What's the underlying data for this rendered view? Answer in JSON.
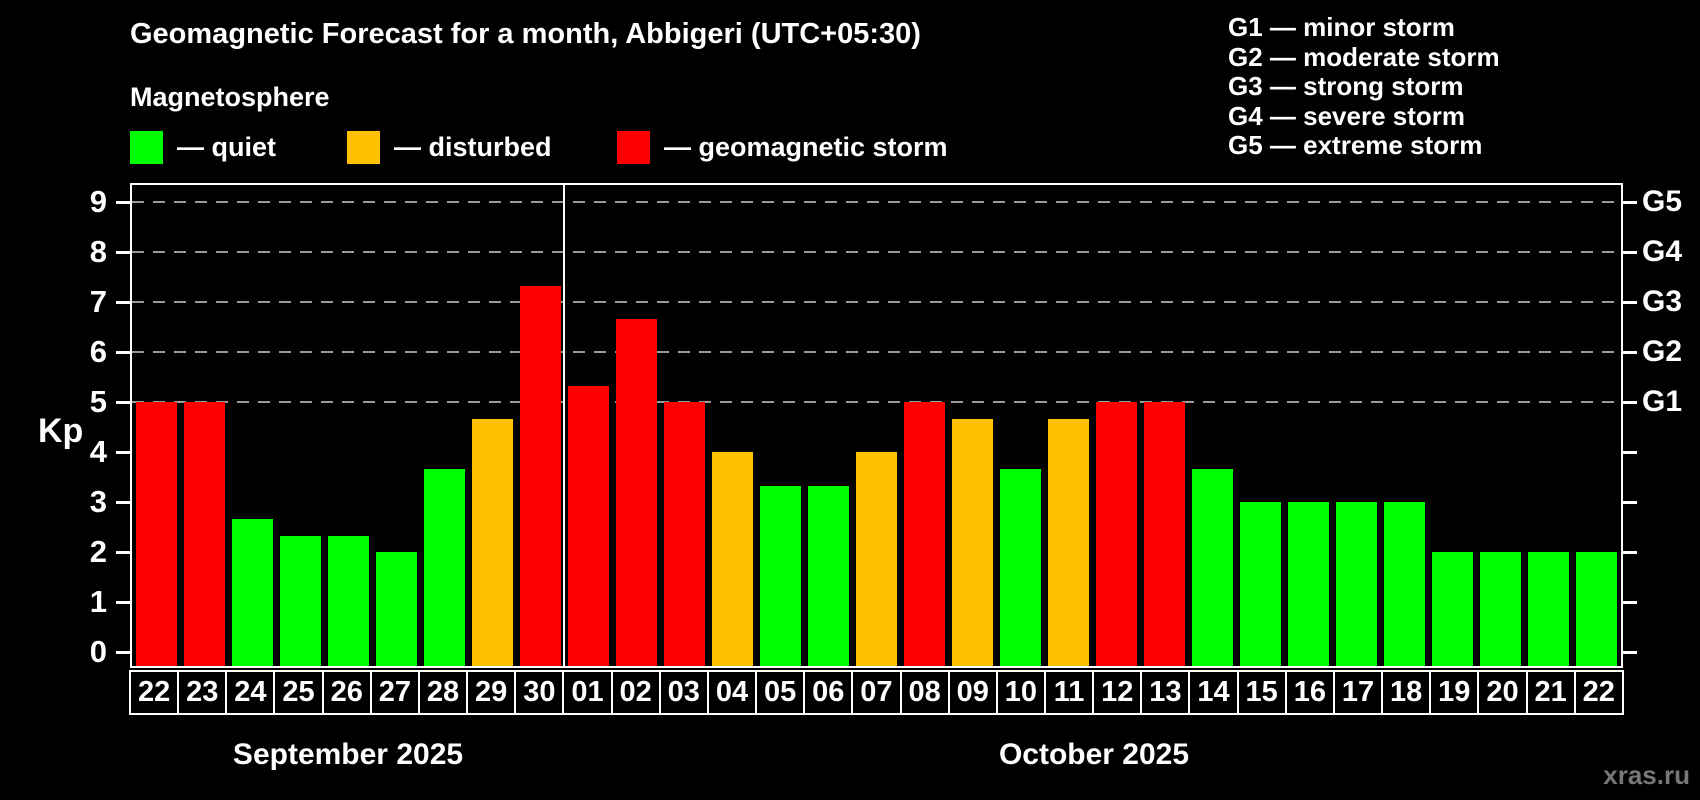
{
  "title": "Geomagnetic Forecast for a month, Abbigeri (UTC+05:30)",
  "subtitle": "Magnetosphere",
  "legend": {
    "items": [
      {
        "key": "quiet",
        "label": "— quiet",
        "color": "#00ff00"
      },
      {
        "key": "disturbed",
        "label": "— disturbed",
        "color": "#ffc000"
      },
      {
        "key": "storm",
        "label": "— geomagnetic storm",
        "color": "#ff0000"
      }
    ]
  },
  "g_legend": {
    "items": [
      "G1 — minor storm",
      "G2 — moderate storm",
      "G3 — strong storm",
      "G4 — severe storm",
      "G5 — extreme storm"
    ]
  },
  "watermark": "xras.ru",
  "chart_data": {
    "type": "bar",
    "title": "Geomagnetic Forecast for a month, Abbigeri (UTC+05:30)",
    "ylabel": "Kp",
    "ylim": [
      0,
      9
    ],
    "grid": "dashed horizontal at Kp 5-9 only",
    "kp_ticks": [
      0,
      1,
      2,
      3,
      4,
      5,
      6,
      7,
      8,
      9
    ],
    "g_ticks": [
      {
        "label": "G1",
        "kp": 5
      },
      {
        "label": "G2",
        "kp": 6
      },
      {
        "label": "G3",
        "kp": 7
      },
      {
        "label": "G4",
        "kp": 8
      },
      {
        "label": "G5",
        "kp": 9
      }
    ],
    "status_colors": {
      "quiet": "#00ff00",
      "disturbed": "#ffc000",
      "storm": "#ff0000"
    },
    "months": [
      {
        "name": "September 2025",
        "count": 9
      },
      {
        "name": "October 2025",
        "count": 22
      }
    ],
    "bars": [
      {
        "month": "September 2025",
        "day": "22",
        "kp": 5.0,
        "status": "storm"
      },
      {
        "month": "September 2025",
        "day": "23",
        "kp": 5.0,
        "status": "storm"
      },
      {
        "month": "September 2025",
        "day": "24",
        "kp": 2.67,
        "status": "quiet"
      },
      {
        "month": "September 2025",
        "day": "25",
        "kp": 2.33,
        "status": "quiet"
      },
      {
        "month": "September 2025",
        "day": "26",
        "kp": 2.33,
        "status": "quiet"
      },
      {
        "month": "September 2025",
        "day": "27",
        "kp": 2.0,
        "status": "quiet"
      },
      {
        "month": "September 2025",
        "day": "28",
        "kp": 3.67,
        "status": "quiet"
      },
      {
        "month": "September 2025",
        "day": "29",
        "kp": 4.67,
        "status": "disturbed"
      },
      {
        "month": "September 2025",
        "day": "30",
        "kp": 7.33,
        "status": "storm"
      },
      {
        "month": "October 2025",
        "day": "01",
        "kp": 5.33,
        "status": "storm"
      },
      {
        "month": "October 2025",
        "day": "02",
        "kp": 6.67,
        "status": "storm"
      },
      {
        "month": "October 2025",
        "day": "03",
        "kp": 5.0,
        "status": "storm"
      },
      {
        "month": "October 2025",
        "day": "04",
        "kp": 4.0,
        "status": "disturbed"
      },
      {
        "month": "October 2025",
        "day": "05",
        "kp": 3.33,
        "status": "quiet"
      },
      {
        "month": "October 2025",
        "day": "06",
        "kp": 3.33,
        "status": "quiet"
      },
      {
        "month": "October 2025",
        "day": "07",
        "kp": 4.0,
        "status": "disturbed"
      },
      {
        "month": "October 2025",
        "day": "08",
        "kp": 5.0,
        "status": "storm"
      },
      {
        "month": "October 2025",
        "day": "09",
        "kp": 4.67,
        "status": "disturbed"
      },
      {
        "month": "October 2025",
        "day": "10",
        "kp": 3.67,
        "status": "quiet"
      },
      {
        "month": "October 2025",
        "day": "11",
        "kp": 4.67,
        "status": "disturbed"
      },
      {
        "month": "October 2025",
        "day": "12",
        "kp": 5.0,
        "status": "storm"
      },
      {
        "month": "October 2025",
        "day": "13",
        "kp": 5.0,
        "status": "storm"
      },
      {
        "month": "October 2025",
        "day": "14",
        "kp": 3.67,
        "status": "quiet"
      },
      {
        "month": "October 2025",
        "day": "15",
        "kp": 3.0,
        "status": "quiet"
      },
      {
        "month": "October 2025",
        "day": "16",
        "kp": 3.0,
        "status": "quiet"
      },
      {
        "month": "October 2025",
        "day": "17",
        "kp": 3.0,
        "status": "quiet"
      },
      {
        "month": "October 2025",
        "day": "18",
        "kp": 3.0,
        "status": "quiet"
      },
      {
        "month": "October 2025",
        "day": "19",
        "kp": 2.0,
        "status": "quiet"
      },
      {
        "month": "October 2025",
        "day": "20",
        "kp": 2.0,
        "status": "quiet"
      },
      {
        "month": "October 2025",
        "day": "21",
        "kp": 2.0,
        "status": "quiet"
      },
      {
        "month": "October 2025",
        "day": "22",
        "kp": 2.0,
        "status": "quiet"
      }
    ]
  }
}
